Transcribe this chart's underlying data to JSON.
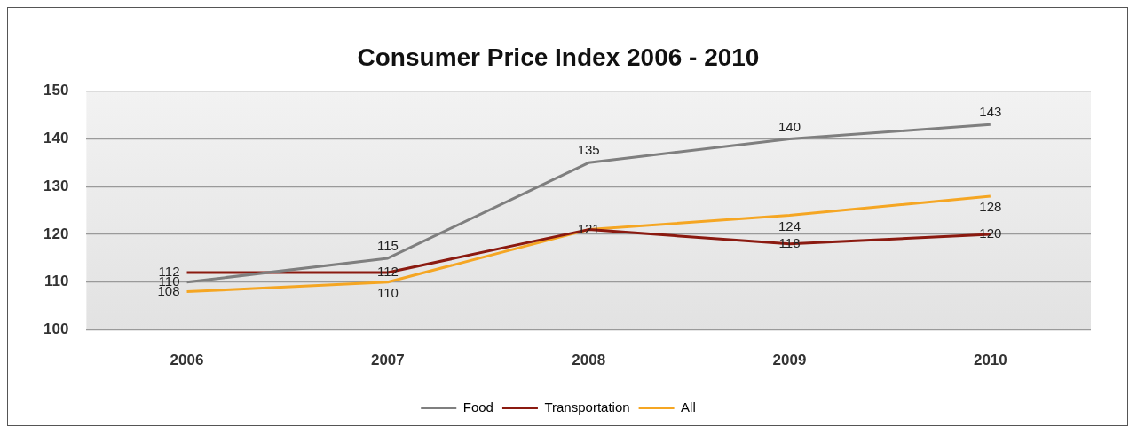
{
  "chart_data": {
    "type": "line",
    "title": "Consumer Price Index 2006 - 2010",
    "categories": [
      "2006",
      "2007",
      "2008",
      "2009",
      "2010"
    ],
    "series": [
      {
        "name": "Food",
        "color": "#7f7f7f",
        "values": [
          110,
          115,
          135,
          140,
          143
        ],
        "value_labels": [
          "110",
          "115",
          "135",
          "140",
          "143"
        ]
      },
      {
        "name": "Transportation",
        "color": "#8b1a10",
        "values": [
          112,
          112,
          121,
          118,
          120
        ],
        "value_labels": [
          "112",
          "112",
          "121",
          "118",
          "120"
        ]
      },
      {
        "name": "All",
        "color": "#f5a623",
        "values": [
          108,
          110,
          121,
          124,
          128
        ],
        "value_labels": [
          "108",
          "110",
          null,
          "124",
          "128"
        ]
      }
    ],
    "ylim": [
      100,
      150
    ],
    "yticks": [
      100,
      110,
      120,
      130,
      140,
      150
    ],
    "grid": "y",
    "legend": "bottom",
    "marker": "none",
    "line_style": "solid"
  }
}
